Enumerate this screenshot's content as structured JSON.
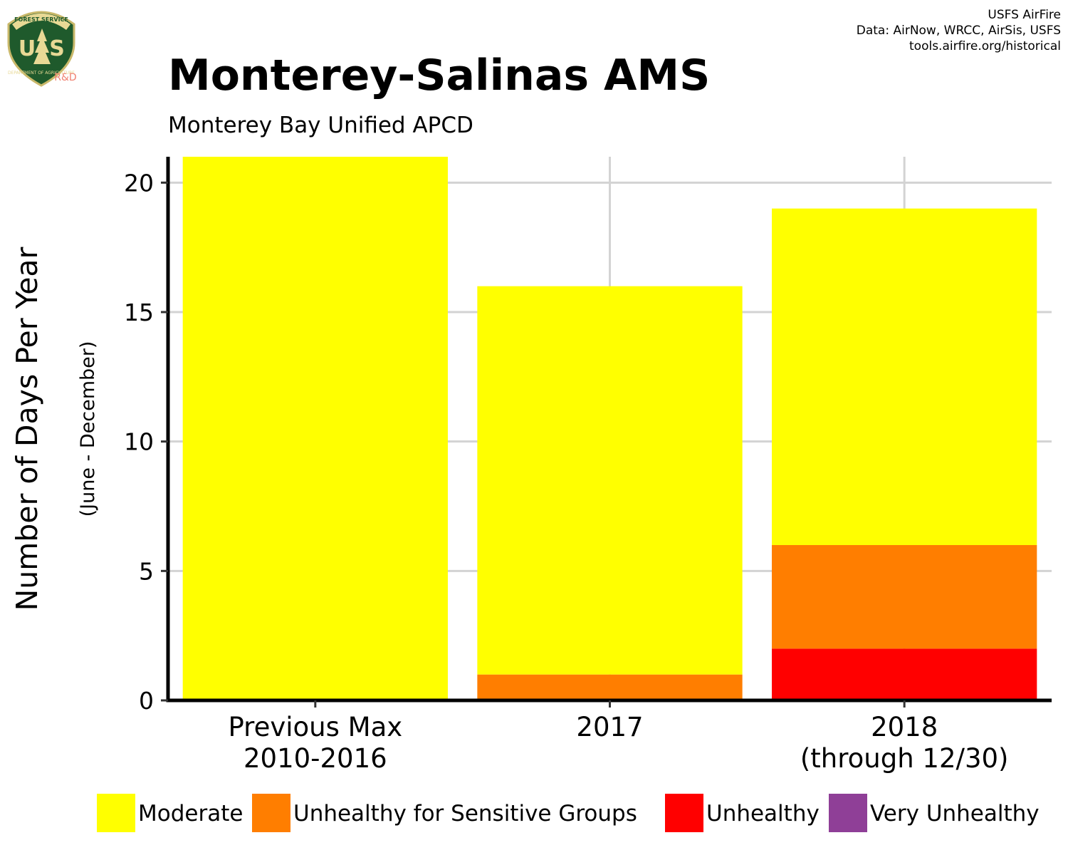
{
  "logo": {
    "top_text": "FOREST SERVICE",
    "left_letter": "U",
    "right_letter": "S",
    "bottom_text": "DEPARTMENT OF AGRICULTURE",
    "badge": "R&D"
  },
  "credits": [
    "USFS AirFire",
    "Data: AirNow, WRCC, AirSis, USFS",
    "tools.airfire.org/historical"
  ],
  "colors": {
    "Moderate": "#ffff00",
    "Unhealthy for Sensitive Groups": "#ff7e00",
    "Unhealthy": "#ff0000",
    "Very Unhealthy": "#8f3f97",
    "grid": "#d3d3d3",
    "axis": "#000000"
  },
  "chart_data": {
    "type": "bar",
    "stacked": true,
    "title": "Monterey-Salinas AMS",
    "subtitle": "Monterey Bay Unified APCD",
    "ylabel": "Number of Days Per Year",
    "ylabel_sub": "(June - December)",
    "xlabel": "",
    "categories": [
      [
        "Previous Max",
        "2010-2016"
      ],
      [
        "2017"
      ],
      [
        "2018",
        "(through 12/30)"
      ]
    ],
    "series": [
      {
        "name": "Unhealthy",
        "values": [
          0,
          0,
          2
        ]
      },
      {
        "name": "Unhealthy for Sensitive Groups",
        "values": [
          0,
          1,
          4
        ]
      },
      {
        "name": "Moderate",
        "values": [
          21,
          15,
          13
        ]
      },
      {
        "name": "Very Unhealthy",
        "values": [
          0,
          0,
          0
        ]
      }
    ],
    "legend_order": [
      "Moderate",
      "Unhealthy for Sensitive Groups",
      "Unhealthy",
      "Very Unhealthy"
    ],
    "yticks": [
      0,
      5,
      10,
      15,
      20
    ],
    "ylim": [
      0,
      21
    ],
    "grid": true,
    "legend_position": "bottom"
  }
}
